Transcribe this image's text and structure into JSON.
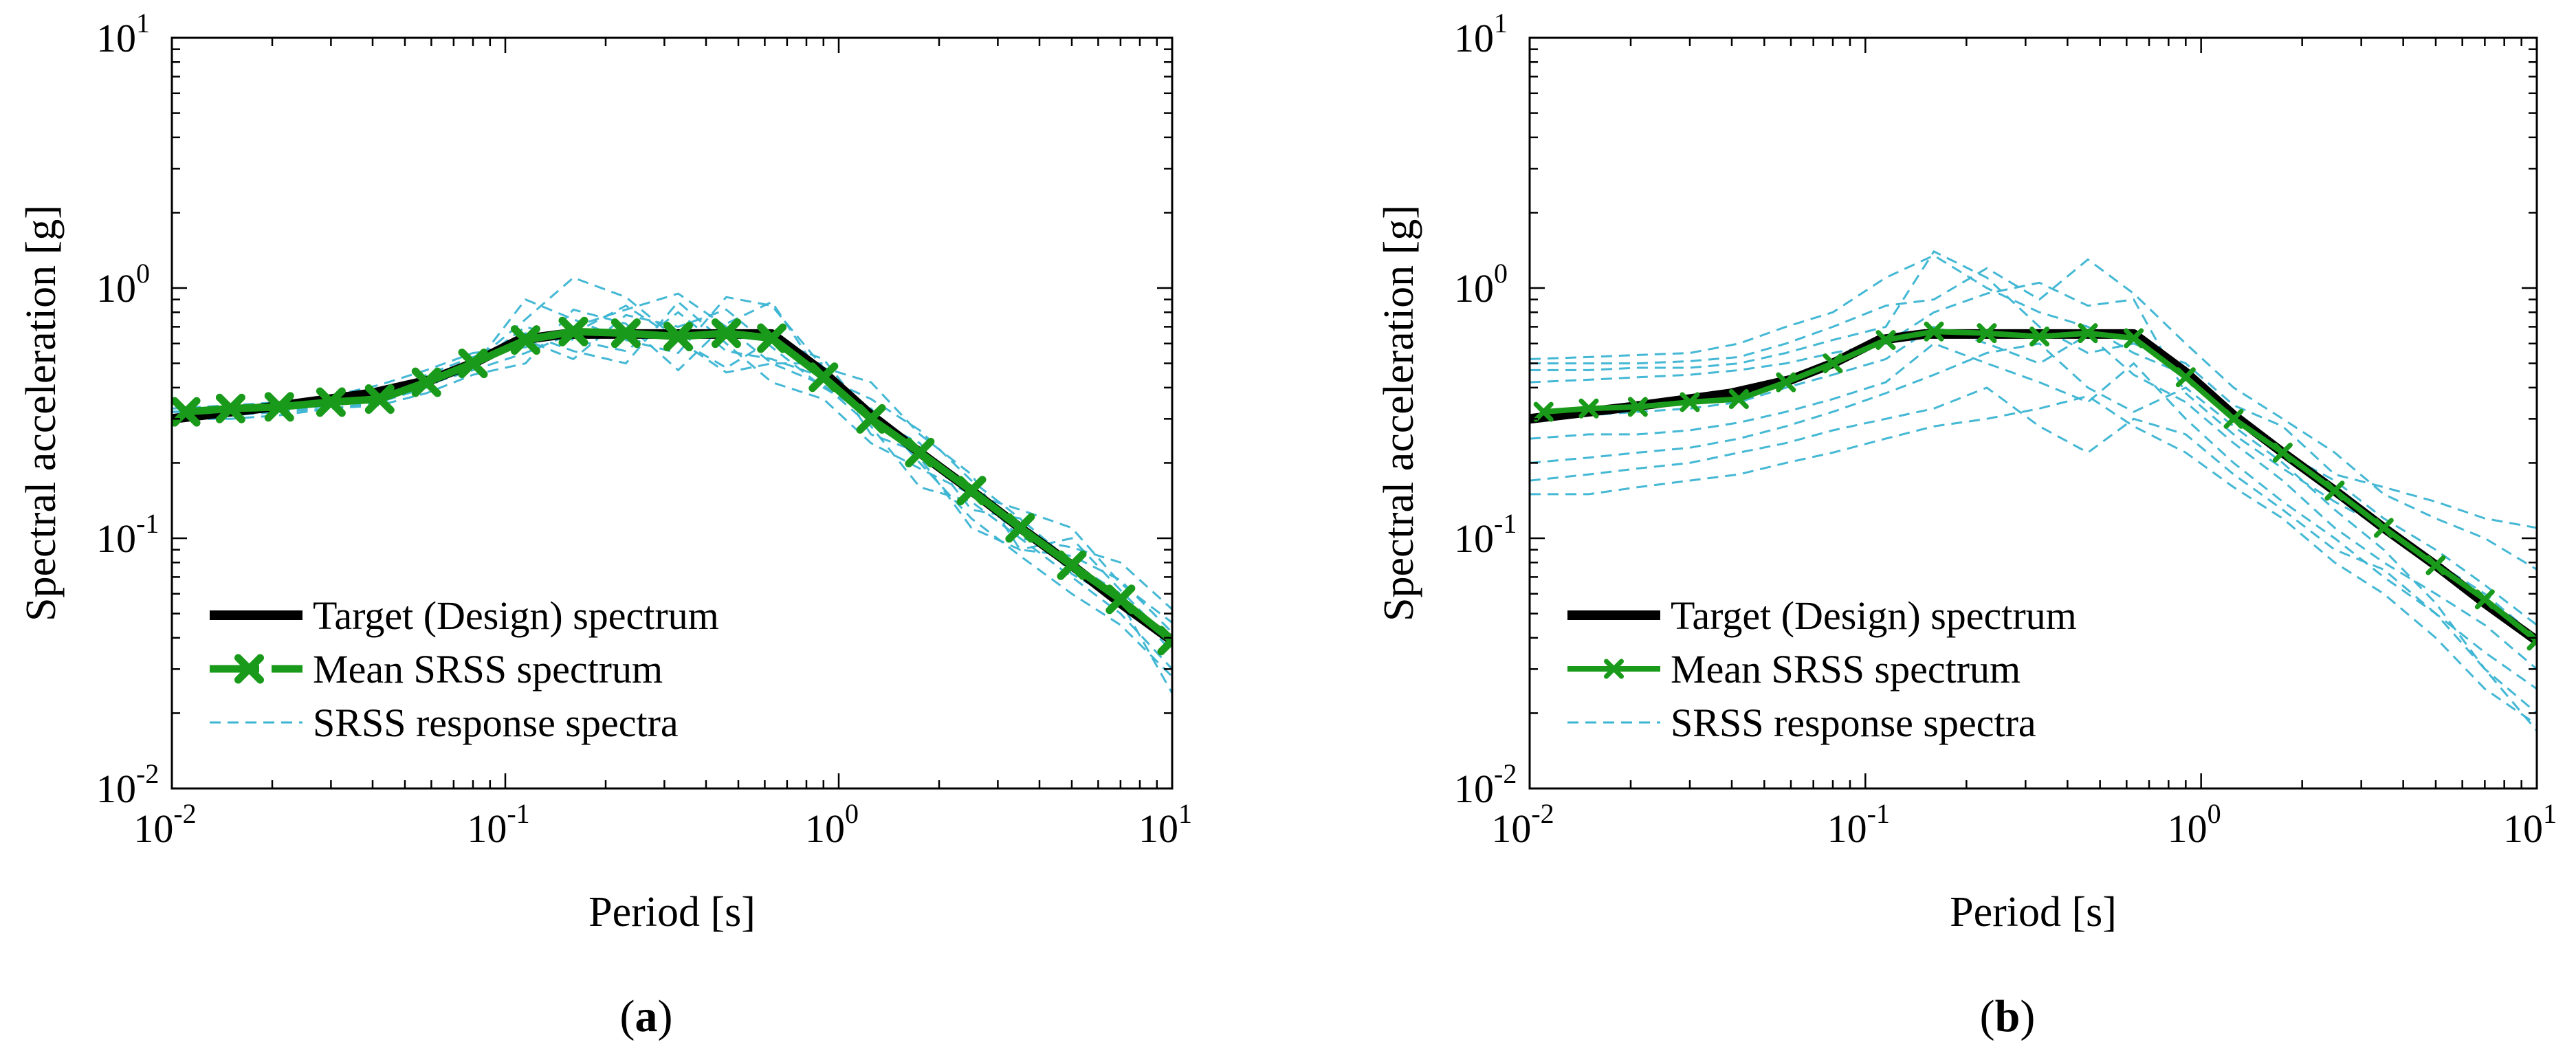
{
  "chart_data": [
    {
      "type": "line",
      "panel_label": "a",
      "xlabel": "Period [s]",
      "ylabel": "Spectral acceleration [g]",
      "xscale": "log",
      "yscale": "log",
      "xlim": [
        0.01,
        10
      ],
      "ylim": [
        0.01,
        10
      ],
      "x_ticks": [
        {
          "base": "10",
          "exp": "-2"
        },
        {
          "base": "10",
          "exp": "-1"
        },
        {
          "base": "10",
          "exp": "0"
        },
        {
          "base": "10",
          "exp": "1"
        }
      ],
      "y_ticks": [
        {
          "base": "10",
          "exp": "-2"
        },
        {
          "base": "10",
          "exp": "-1"
        },
        {
          "base": "10",
          "exp": "0"
        },
        {
          "base": "10",
          "exp": "1"
        }
      ],
      "grid": false,
      "legend_position": "bottom-left",
      "legend": [
        "Target (Design) spectrum",
        "Mean SRSS spectrum",
        "SRSS response spectra"
      ],
      "target": {
        "name": "Target (Design) spectrum",
        "color": "#000000",
        "x": [
          0.01,
          0.015,
          0.02,
          0.03,
          0.04,
          0.06,
          0.08,
          0.11,
          0.15,
          0.63,
          0.9,
          1.25,
          1.75,
          2.5,
          3.5,
          5,
          7,
          10
        ],
        "y": [
          0.3,
          0.32,
          0.335,
          0.36,
          0.38,
          0.43,
          0.5,
          0.62,
          0.655,
          0.655,
          0.46,
          0.31,
          0.22,
          0.155,
          0.11,
          0.078,
          0.055,
          0.039
        ]
      },
      "mean": {
        "name": "Mean SRSS spectrum",
        "color": "#1a9a1a",
        "marker": "x",
        "x": [
          0.011,
          0.015,
          0.021,
          0.03,
          0.042,
          0.058,
          0.08,
          0.115,
          0.16,
          0.23,
          0.33,
          0.46,
          0.63,
          0.9,
          1.25,
          1.75,
          2.5,
          3.5,
          5,
          7,
          10
        ],
        "y": [
          0.32,
          0.33,
          0.335,
          0.35,
          0.36,
          0.42,
          0.5,
          0.62,
          0.67,
          0.66,
          0.64,
          0.66,
          0.63,
          0.44,
          0.3,
          0.22,
          0.155,
          0.11,
          0.078,
          0.057,
          0.039
        ]
      },
      "records": {
        "name": "SRSS response spectra",
        "color": "#3ab4d2",
        "x": [
          0.01,
          0.015,
          0.021,
          0.03,
          0.042,
          0.058,
          0.08,
          0.115,
          0.16,
          0.23,
          0.33,
          0.46,
          0.63,
          0.9,
          1.25,
          1.75,
          2.5,
          3.5,
          5,
          7,
          10
        ],
        "series": [
          [
            0.3,
            0.31,
            0.32,
            0.33,
            0.35,
            0.4,
            0.5,
            0.75,
            1.1,
            0.92,
            0.62,
            0.48,
            0.62,
            0.52,
            0.3,
            0.24,
            0.13,
            0.12,
            0.08,
            0.06,
            0.035
          ],
          [
            0.33,
            0.34,
            0.35,
            0.37,
            0.41,
            0.47,
            0.55,
            0.58,
            0.7,
            0.82,
            0.95,
            0.7,
            0.5,
            0.41,
            0.28,
            0.16,
            0.14,
            0.1,
            0.07,
            0.05,
            0.03
          ],
          [
            0.31,
            0.31,
            0.32,
            0.34,
            0.36,
            0.42,
            0.48,
            0.9,
            0.75,
            0.62,
            0.55,
            0.92,
            0.85,
            0.48,
            0.42,
            0.26,
            0.18,
            0.09,
            0.085,
            0.068,
            0.042
          ],
          [
            0.32,
            0.33,
            0.34,
            0.36,
            0.38,
            0.43,
            0.52,
            0.66,
            0.56,
            0.5,
            0.88,
            0.6,
            0.42,
            0.36,
            0.24,
            0.19,
            0.15,
            0.13,
            0.11,
            0.066,
            0.046
          ],
          [
            0.3,
            0.3,
            0.31,
            0.33,
            0.34,
            0.38,
            0.45,
            0.5,
            0.82,
            0.72,
            0.47,
            0.72,
            0.88,
            0.43,
            0.33,
            0.2,
            0.12,
            0.085,
            0.06,
            0.045,
            0.028
          ],
          [
            0.31,
            0.32,
            0.33,
            0.35,
            0.37,
            0.44,
            0.49,
            0.7,
            0.62,
            0.56,
            0.8,
            0.56,
            0.52,
            0.44,
            0.36,
            0.27,
            0.17,
            0.12,
            0.072,
            0.056,
            0.024
          ],
          [
            0.32,
            0.32,
            0.33,
            0.34,
            0.39,
            0.41,
            0.47,
            0.55,
            0.66,
            0.85,
            0.62,
            0.46,
            0.5,
            0.5,
            0.26,
            0.22,
            0.16,
            0.1,
            0.092,
            0.08,
            0.052
          ],
          [
            0.31,
            0.33,
            0.34,
            0.35,
            0.36,
            0.45,
            0.53,
            0.62,
            0.52,
            0.78,
            0.7,
            0.82,
            0.58,
            0.4,
            0.31,
            0.21,
            0.11,
            0.09,
            0.1,
            0.062,
            0.038
          ]
        ]
      }
    },
    {
      "type": "line",
      "panel_label": "b",
      "xlabel": "Period [s]",
      "ylabel": "Spectral acceleration [g]",
      "xscale": "log",
      "yscale": "log",
      "xlim": [
        0.01,
        10
      ],
      "ylim": [
        0.01,
        10
      ],
      "x_ticks": [
        {
          "base": "10",
          "exp": "-2"
        },
        {
          "base": "10",
          "exp": "-1"
        },
        {
          "base": "10",
          "exp": "0"
        },
        {
          "base": "10",
          "exp": "1"
        }
      ],
      "y_ticks": [
        {
          "base": "10",
          "exp": "-2"
        },
        {
          "base": "10",
          "exp": "-1"
        },
        {
          "base": "10",
          "exp": "0"
        },
        {
          "base": "10",
          "exp": "1"
        }
      ],
      "grid": false,
      "legend_position": "bottom-left",
      "legend": [
        "Target (Design) spectrum",
        "Mean SRSS spectrum",
        "SRSS response spectra"
      ],
      "target": {
        "name": "Target (Design) spectrum",
        "color": "#000000",
        "x": [
          0.01,
          0.015,
          0.02,
          0.03,
          0.04,
          0.06,
          0.08,
          0.11,
          0.15,
          0.63,
          0.9,
          1.25,
          1.75,
          2.5,
          3.5,
          5,
          7,
          10
        ],
        "y": [
          0.3,
          0.32,
          0.335,
          0.36,
          0.38,
          0.43,
          0.5,
          0.62,
          0.655,
          0.655,
          0.46,
          0.31,
          0.22,
          0.155,
          0.11,
          0.078,
          0.055,
          0.039
        ]
      },
      "mean": {
        "name": "Mean SRSS spectrum",
        "color": "#1a9a1a",
        "marker": "x",
        "x": [
          0.011,
          0.015,
          0.021,
          0.03,
          0.042,
          0.058,
          0.08,
          0.115,
          0.16,
          0.23,
          0.33,
          0.46,
          0.63,
          0.9,
          1.25,
          1.75,
          2.5,
          3.5,
          5,
          7,
          10
        ],
        "y": [
          0.32,
          0.33,
          0.335,
          0.35,
          0.36,
          0.42,
          0.5,
          0.62,
          0.67,
          0.66,
          0.64,
          0.66,
          0.63,
          0.44,
          0.3,
          0.22,
          0.155,
          0.11,
          0.078,
          0.057,
          0.039
        ]
      },
      "records": {
        "name": "SRSS response spectra",
        "color": "#3ab4d2",
        "x": [
          0.01,
          0.015,
          0.021,
          0.03,
          0.042,
          0.058,
          0.08,
          0.115,
          0.16,
          0.23,
          0.33,
          0.46,
          0.63,
          0.9,
          1.25,
          1.75,
          2.5,
          3.5,
          5,
          7,
          10
        ],
        "series": [
          [
            0.52,
            0.53,
            0.54,
            0.55,
            0.6,
            0.7,
            0.8,
            1.1,
            1.35,
            1.0,
            0.8,
            0.7,
            0.55,
            0.45,
            0.3,
            0.22,
            0.17,
            0.12,
            0.09,
            0.065,
            0.045
          ],
          [
            0.5,
            0.5,
            0.5,
            0.51,
            0.53,
            0.6,
            0.7,
            0.85,
            0.9,
            1.2,
            0.9,
            1.3,
            0.95,
            0.6,
            0.4,
            0.3,
            0.22,
            0.15,
            0.12,
            0.1,
            0.075
          ],
          [
            0.47,
            0.47,
            0.48,
            0.48,
            0.5,
            0.55,
            0.62,
            0.7,
            1.4,
            1.1,
            0.7,
            0.55,
            0.6,
            0.5,
            0.34,
            0.28,
            0.18,
            0.16,
            0.14,
            0.12,
            0.11
          ],
          [
            0.42,
            0.43,
            0.44,
            0.45,
            0.47,
            0.5,
            0.55,
            0.6,
            0.8,
            0.95,
            1.05,
            0.85,
            0.9,
            0.38,
            0.26,
            0.19,
            0.14,
            0.11,
            0.08,
            0.06,
            0.04
          ],
          [
            0.3,
            0.31,
            0.32,
            0.33,
            0.35,
            0.4,
            0.45,
            0.52,
            0.7,
            0.6,
            0.5,
            0.65,
            0.45,
            0.35,
            0.24,
            0.17,
            0.11,
            0.08,
            0.06,
            0.045,
            0.03
          ],
          [
            0.25,
            0.26,
            0.26,
            0.27,
            0.29,
            0.32,
            0.36,
            0.42,
            0.6,
            0.5,
            0.42,
            0.35,
            0.5,
            0.3,
            0.2,
            0.14,
            0.1,
            0.07,
            0.05,
            0.035,
            0.025
          ],
          [
            0.2,
            0.21,
            0.22,
            0.23,
            0.25,
            0.28,
            0.32,
            0.38,
            0.45,
            0.55,
            0.6,
            0.4,
            0.32,
            0.4,
            0.28,
            0.2,
            0.13,
            0.09,
            0.055,
            0.03,
            0.02
          ],
          [
            0.17,
            0.18,
            0.19,
            0.2,
            0.22,
            0.24,
            0.27,
            0.3,
            0.33,
            0.4,
            0.28,
            0.22,
            0.3,
            0.26,
            0.18,
            0.13,
            0.09,
            0.075,
            0.05,
            0.03,
            0.017
          ],
          [
            0.15,
            0.15,
            0.16,
            0.17,
            0.18,
            0.2,
            0.22,
            0.25,
            0.28,
            0.3,
            0.33,
            0.37,
            0.28,
            0.22,
            0.16,
            0.12,
            0.08,
            0.06,
            0.04,
            0.025,
            0.018
          ]
        ]
      }
    }
  ]
}
